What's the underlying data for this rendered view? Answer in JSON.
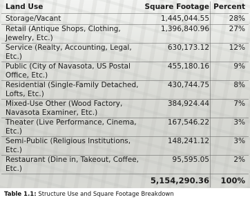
{
  "table": {
    "header": [
      "Land Use",
      "Square Footage",
      "Percent"
    ],
    "rows": [
      [
        "Storage/Vacant",
        "1,445,044.55",
        "28%"
      ],
      [
        "Retail (Antique Shops, Clothing, Jewelry, Etc.)",
        "1,396,840.96",
        "27%"
      ],
      [
        "Service (Realty, Accounting, Legal, Etc.)",
        "630,173.12",
        "12%"
      ],
      [
        "Public (City of Navasota, US Postal Office, Etc.)",
        "455,180.16",
        "9%"
      ],
      [
        "Residential (Single-Family Detached, Lofts, Etc.)",
        "430,744.75",
        "8%"
      ],
      [
        "Mixed-Use Other (Wood Factory, Navasota Examiner, Etc.)",
        "384,924.44",
        "7%"
      ],
      [
        "Theater (Live Performance, Cinema, Etc.)",
        "167,546.22",
        "3%"
      ],
      [
        "Semi-Public (Religious Institutions, Etc.)",
        "148,241.12",
        "3%"
      ],
      [
        "Restaurant (Dine in, Takeout, Coffee, Etc.)",
        "95,595.05",
        "2%"
      ]
    ],
    "total": [
      "5,154,290.36",
      "100%"
    ]
  },
  "caption": {
    "label": "Table 1.1:",
    "text": "Structure Use and Square Footage Breakdown"
  }
}
